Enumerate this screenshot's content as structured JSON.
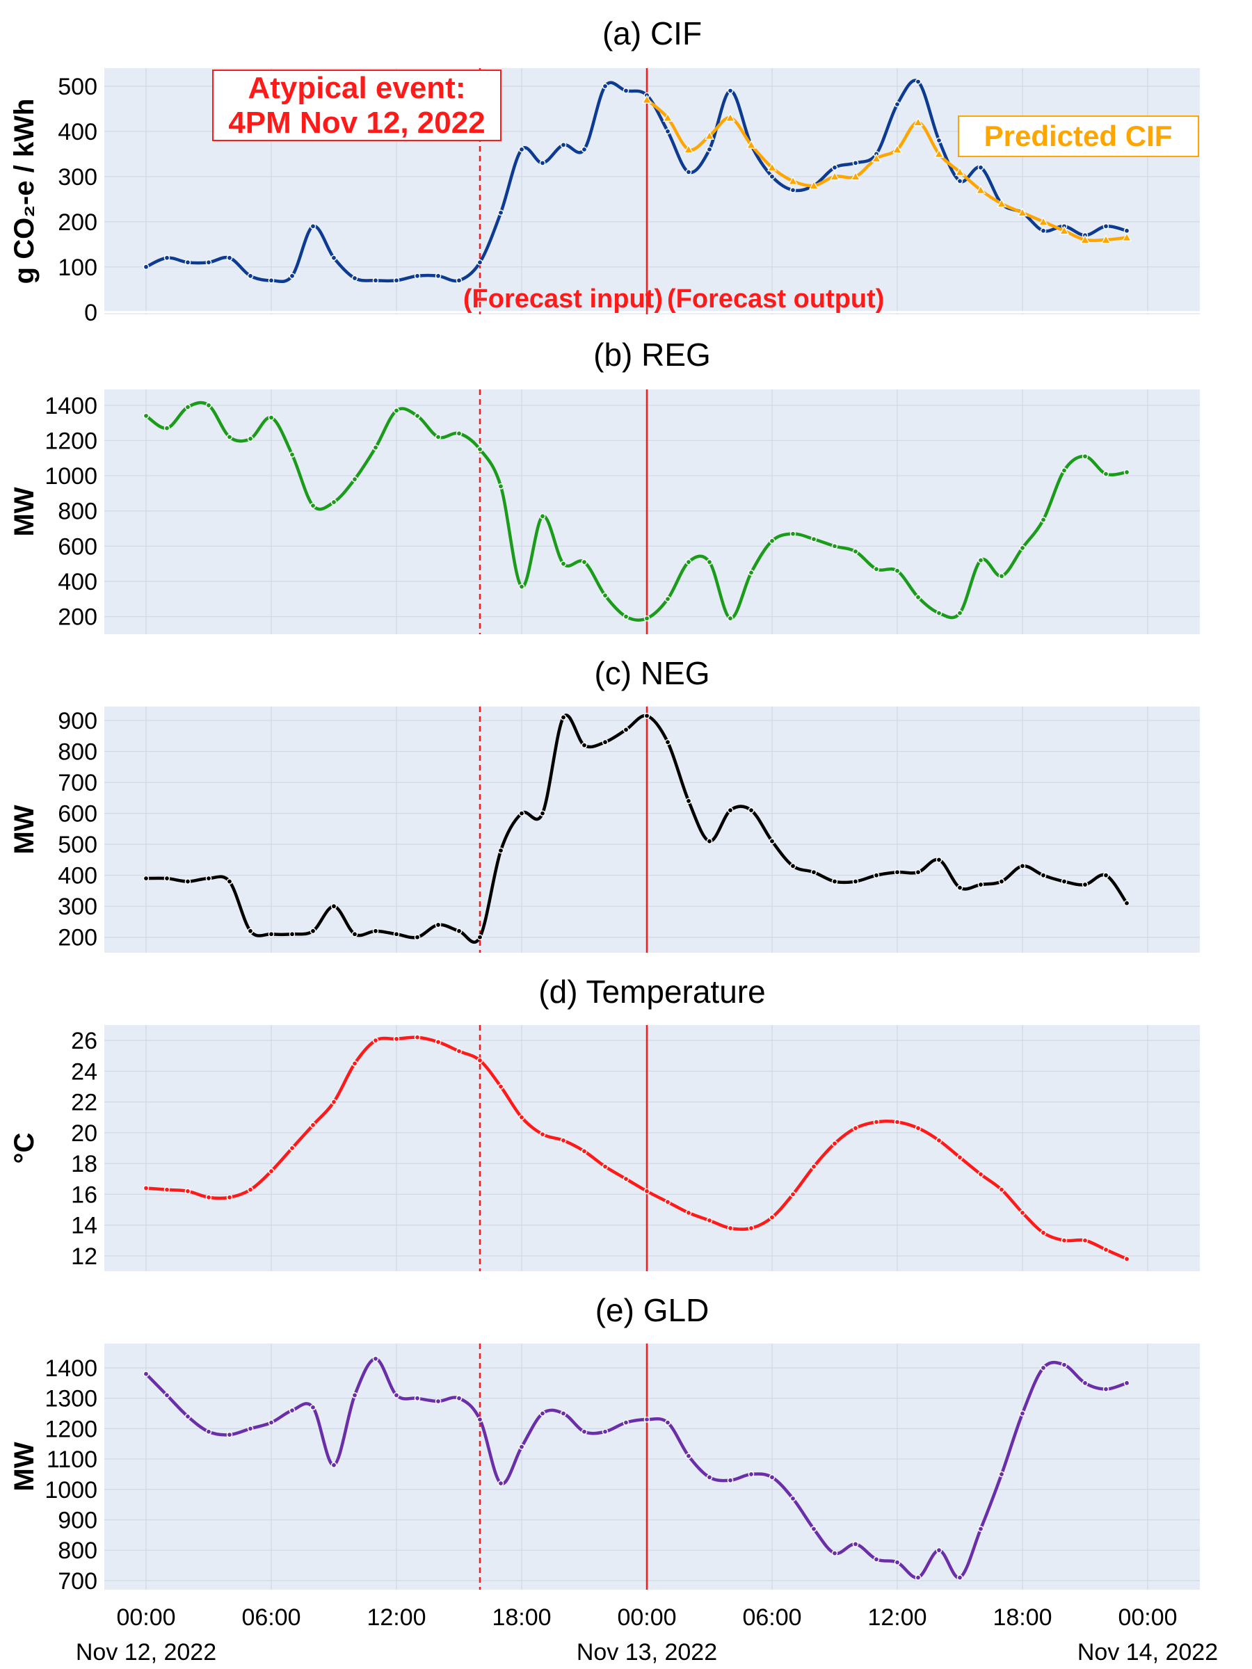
{
  "x_axis": {
    "tick_labels": [
      "00:00",
      "06:00",
      "12:00",
      "18:00",
      "00:00",
      "06:00",
      "12:00",
      "18:00",
      "00:00"
    ],
    "tick_hours": [
      0,
      6,
      12,
      18,
      24,
      30,
      36,
      42,
      48
    ],
    "date_labels": [
      "Nov 12, 2022",
      "Nov 13, 2022",
      "Nov 14, 2022"
    ],
    "date_hours": [
      0,
      24,
      48
    ],
    "range_hours": [
      -2,
      50.5
    ]
  },
  "annotations": {
    "atypical_line1": "Atypical event:",
    "atypical_line2": "4PM Nov 12, 2022",
    "forecast_input": "(Forecast input)",
    "forecast_output": "(Forecast output)",
    "predicted_label": "Predicted CIF",
    "event_hour": 16,
    "split_hour": 24
  },
  "colors": {
    "plot_bg": "#e5ecf6",
    "grid": "#cfd8e4",
    "cif": "#0d3b91",
    "predicted": "#ffa500",
    "reg": "#1a9c1a",
    "neg": "#000000",
    "temperature": "#ff1a1a",
    "gld": "#6a2ea8",
    "marker_line": "#ff1a1a"
  },
  "chart_data": [
    {
      "type": "line",
      "title": "(a) CIF",
      "ylabel": "g CO₂-e / kWh",
      "ylim": [
        -5,
        540
      ],
      "yticks": [
        0,
        100,
        200,
        300,
        400,
        500
      ],
      "series": [
        {
          "key": "actual",
          "x": [
            0,
            1,
            2,
            3,
            4,
            5,
            6,
            7,
            8,
            9,
            10,
            11,
            12,
            13,
            14,
            15,
            16,
            17,
            18,
            19,
            20,
            21,
            22,
            23,
            24,
            25,
            26,
            27,
            28,
            29,
            30,
            31,
            32,
            33,
            34,
            35,
            36,
            37,
            38,
            39,
            40,
            41,
            42,
            43,
            44,
            45,
            46,
            47
          ],
          "values": [
            100,
            120,
            110,
            110,
            120,
            80,
            70,
            80,
            190,
            120,
            75,
            70,
            70,
            80,
            80,
            70,
            110,
            220,
            360,
            330,
            370,
            360,
            500,
            490,
            480,
            400,
            310,
            360,
            490,
            370,
            300,
            270,
            280,
            320,
            330,
            350,
            460,
            510,
            380,
            290,
            320,
            240,
            220,
            180,
            190,
            170,
            190,
            180
          ]
        },
        {
          "key": "predicted",
          "name": "Predicted CIF",
          "x": [
            24,
            25,
            26,
            27,
            28,
            29,
            30,
            31,
            32,
            33,
            34,
            35,
            36,
            37,
            38,
            39,
            40,
            41,
            42,
            43,
            44,
            45,
            46,
            47
          ],
          "values": [
            470,
            430,
            360,
            390,
            430,
            370,
            320,
            290,
            280,
            300,
            300,
            340,
            360,
            420,
            350,
            310,
            270,
            240,
            220,
            200,
            180,
            160,
            160,
            165
          ]
        }
      ]
    },
    {
      "type": "line",
      "title": "(b) REG",
      "ylabel": "MW",
      "ylim": [
        100,
        1490
      ],
      "yticks": [
        200,
        400,
        600,
        800,
        1000,
        1200,
        1400
      ],
      "series": [
        {
          "key": "reg",
          "x": [
            0,
            1,
            2,
            3,
            4,
            5,
            6,
            7,
            8,
            9,
            10,
            11,
            12,
            13,
            14,
            15,
            16,
            17,
            18,
            19,
            20,
            21,
            22,
            23,
            24,
            25,
            26,
            27,
            28,
            29,
            30,
            31,
            32,
            33,
            34,
            35,
            36,
            37,
            38,
            39,
            40,
            41,
            42,
            43,
            44,
            45,
            46,
            47
          ],
          "values": [
            1340,
            1270,
            1390,
            1400,
            1220,
            1210,
            1330,
            1120,
            830,
            850,
            980,
            1160,
            1370,
            1340,
            1220,
            1240,
            1150,
            940,
            370,
            770,
            500,
            510,
            320,
            200,
            190,
            300,
            510,
            510,
            190,
            450,
            630,
            670,
            640,
            600,
            570,
            470,
            460,
            310,
            220,
            220,
            520,
            430,
            590,
            750,
            1030,
            1110,
            1010,
            1020
          ]
        }
      ]
    },
    {
      "type": "line",
      "title": "(c) NEG",
      "ylabel": "MW",
      "ylim": [
        150,
        945
      ],
      "yticks": [
        200,
        300,
        400,
        500,
        600,
        700,
        800,
        900
      ],
      "series": [
        {
          "key": "neg",
          "x": [
            0,
            1,
            2,
            3,
            4,
            5,
            6,
            7,
            8,
            9,
            10,
            11,
            12,
            13,
            14,
            15,
            16,
            17,
            18,
            19,
            20,
            21,
            22,
            23,
            24,
            25,
            26,
            27,
            28,
            29,
            30,
            31,
            32,
            33,
            34,
            35,
            36,
            37,
            38,
            39,
            40,
            41,
            42,
            43,
            44,
            45,
            46,
            47
          ],
          "values": [
            390,
            390,
            380,
            390,
            380,
            220,
            210,
            210,
            220,
            300,
            210,
            220,
            210,
            200,
            240,
            220,
            200,
            480,
            600,
            600,
            910,
            820,
            830,
            870,
            915,
            830,
            640,
            510,
            610,
            610,
            510,
            430,
            410,
            380,
            380,
            400,
            410,
            410,
            450,
            360,
            370,
            380,
            430,
            400,
            380,
            370,
            400,
            310
          ]
        }
      ]
    },
    {
      "type": "line",
      "title": "(d) Temperature",
      "ylabel": "°C",
      "ylim": [
        11,
        27
      ],
      "yticks": [
        12,
        14,
        16,
        18,
        20,
        22,
        24,
        26
      ],
      "series": [
        {
          "key": "temperature",
          "x": [
            0,
            1,
            2,
            3,
            4,
            5,
            6,
            7,
            8,
            9,
            10,
            11,
            12,
            13,
            14,
            15,
            16,
            17,
            18,
            19,
            20,
            21,
            22,
            23,
            24,
            25,
            26,
            27,
            28,
            29,
            30,
            31,
            32,
            33,
            34,
            35,
            36,
            37,
            38,
            39,
            40,
            41,
            42,
            43,
            44,
            45,
            46,
            47
          ],
          "values": [
            16.4,
            16.3,
            16.2,
            15.8,
            15.8,
            16.3,
            17.5,
            19.0,
            20.5,
            22.0,
            24.5,
            26.0,
            26.1,
            26.2,
            25.9,
            25.3,
            24.7,
            23.0,
            21.0,
            19.9,
            19.5,
            18.8,
            17.8,
            17.0,
            16.2,
            15.5,
            14.8,
            14.3,
            13.8,
            13.8,
            14.5,
            16.0,
            17.8,
            19.3,
            20.3,
            20.7,
            20.7,
            20.3,
            19.5,
            18.4,
            17.3,
            16.3,
            14.8,
            13.5,
            13.0,
            13.0,
            12.4,
            11.8
          ]
        }
      ]
    },
    {
      "type": "line",
      "title": "(e) GLD",
      "ylabel": "MW",
      "ylim": [
        670,
        1480
      ],
      "yticks": [
        700,
        800,
        900,
        1000,
        1100,
        1200,
        1300,
        1400
      ],
      "series": [
        {
          "key": "gld",
          "x": [
            0,
            1,
            2,
            3,
            4,
            5,
            6,
            7,
            8,
            9,
            10,
            11,
            12,
            13,
            14,
            15,
            16,
            17,
            18,
            19,
            20,
            21,
            22,
            23,
            24,
            25,
            26,
            27,
            28,
            29,
            30,
            31,
            32,
            33,
            34,
            35,
            36,
            37,
            38,
            39,
            40,
            41,
            42,
            43,
            44,
            45,
            46,
            47
          ],
          "values": [
            1380,
            1310,
            1240,
            1190,
            1180,
            1200,
            1220,
            1260,
            1270,
            1080,
            1310,
            1430,
            1310,
            1300,
            1290,
            1300,
            1230,
            1020,
            1140,
            1250,
            1250,
            1190,
            1190,
            1220,
            1230,
            1220,
            1110,
            1040,
            1030,
            1050,
            1040,
            970,
            870,
            790,
            820,
            770,
            760,
            710,
            800,
            710,
            870,
            1050,
            1250,
            1400,
            1410,
            1350,
            1330,
            1350
          ]
        }
      ]
    }
  ]
}
